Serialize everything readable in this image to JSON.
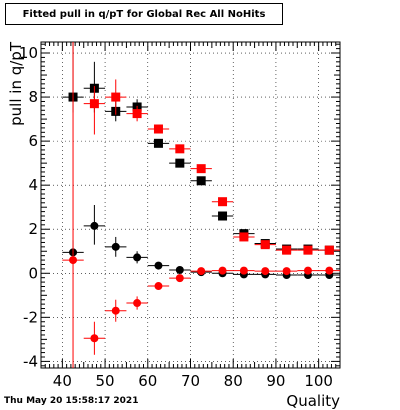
{
  "title": "Fitted pull in q/pT for Global Rec All NoHits",
  "timestamp": "Thu May 20 15:58:17 2021",
  "chart_data": {
    "type": "scatter",
    "title": "Fitted pull in q/pT for Global Rec All NoHits",
    "xlabel": "Quality",
    "ylabel": "pull in q/pT",
    "xlim": [
      35,
      105
    ],
    "ylim": [
      -4.3,
      10.5
    ],
    "xticks": [
      40,
      50,
      60,
      70,
      80,
      90,
      100
    ],
    "yticks": [
      -4,
      -2,
      0,
      2,
      4,
      6,
      8,
      10
    ],
    "grid": true,
    "legend": "none",
    "series": [
      {
        "marker": "square",
        "color": "#000000",
        "points": [
          {
            "x": 42.5,
            "y": 8.0,
            "ylo": 7.3,
            "yhi": 10.5
          },
          {
            "x": 47.5,
            "y": 8.4,
            "ylo": 7.3,
            "yhi": 9.6
          },
          {
            "x": 52.5,
            "y": 7.35,
            "ylo": 6.9,
            "yhi": 7.8
          },
          {
            "x": 57.5,
            "y": 7.55,
            "ylo": 7.2,
            "yhi": 7.9
          },
          {
            "x": 62.5,
            "y": 5.9,
            "ylo": 5.75,
            "yhi": 6.05
          },
          {
            "x": 67.5,
            "y": 5.0,
            "ylo": 4.9,
            "yhi": 5.1
          },
          {
            "x": 72.5,
            "y": 4.2,
            "ylo": 4.12,
            "yhi": 4.28
          },
          {
            "x": 77.5,
            "y": 2.6,
            "ylo": 2.54,
            "yhi": 2.66
          },
          {
            "x": 82.5,
            "y": 1.8,
            "ylo": 1.75,
            "yhi": 1.85
          },
          {
            "x": 87.5,
            "y": 1.35,
            "ylo": 1.3,
            "yhi": 1.4
          },
          {
            "x": 92.5,
            "y": 1.1,
            "ylo": 1.06,
            "yhi": 1.14
          },
          {
            "x": 97.5,
            "y": 1.1,
            "ylo": 1.06,
            "yhi": 1.14
          },
          {
            "x": 102.5,
            "y": 1.05,
            "ylo": 1.01,
            "yhi": 1.09
          }
        ]
      },
      {
        "marker": "square",
        "color": "#ff0000",
        "points": [
          {
            "x": 47.5,
            "y": 7.7,
            "ylo": 6.3,
            "yhi": 8.5
          },
          {
            "x": 52.5,
            "y": 8.0,
            "ylo": 7.2,
            "yhi": 8.8
          },
          {
            "x": 57.5,
            "y": 7.25,
            "ylo": 6.9,
            "yhi": 7.6
          },
          {
            "x": 62.5,
            "y": 6.55,
            "ylo": 6.35,
            "yhi": 6.75
          },
          {
            "x": 67.5,
            "y": 5.65,
            "ylo": 5.5,
            "yhi": 5.8
          },
          {
            "x": 72.5,
            "y": 4.75,
            "ylo": 4.65,
            "yhi": 4.85
          },
          {
            "x": 77.5,
            "y": 3.25,
            "ylo": 3.18,
            "yhi": 3.32
          },
          {
            "x": 82.5,
            "y": 1.65,
            "ylo": 1.59,
            "yhi": 1.71
          },
          {
            "x": 87.5,
            "y": 1.3,
            "ylo": 1.25,
            "yhi": 1.35
          },
          {
            "x": 92.5,
            "y": 1.05,
            "ylo": 1.01,
            "yhi": 1.09
          },
          {
            "x": 97.5,
            "y": 1.05,
            "ylo": 1.01,
            "yhi": 1.09
          },
          {
            "x": 102.5,
            "y": 1.05,
            "ylo": 1.01,
            "yhi": 1.09
          }
        ]
      },
      {
        "marker": "circle",
        "color": "#000000",
        "points": [
          {
            "x": 42.5,
            "y": 0.95,
            "ylo": 0.4,
            "yhi": 1.5
          },
          {
            "x": 47.5,
            "y": 2.15,
            "ylo": 1.3,
            "yhi": 3.1
          },
          {
            "x": 52.5,
            "y": 1.2,
            "ylo": 0.75,
            "yhi": 1.65
          },
          {
            "x": 57.5,
            "y": 0.72,
            "ylo": 0.45,
            "yhi": 1.0
          },
          {
            "x": 62.5,
            "y": 0.35,
            "ylo": 0.25,
            "yhi": 0.45
          },
          {
            "x": 67.5,
            "y": 0.15,
            "ylo": 0.08,
            "yhi": 0.22
          },
          {
            "x": 72.5,
            "y": 0.05,
            "ylo": 0.0,
            "yhi": 0.1
          },
          {
            "x": 77.5,
            "y": 0.0,
            "ylo": -0.04,
            "yhi": 0.04
          },
          {
            "x": 82.5,
            "y": -0.05,
            "ylo": -0.09,
            "yhi": -0.01
          },
          {
            "x": 87.5,
            "y": -0.05,
            "ylo": -0.09,
            "yhi": -0.01
          },
          {
            "x": 92.5,
            "y": -0.08,
            "ylo": -0.12,
            "yhi": -0.04
          },
          {
            "x": 97.5,
            "y": -0.08,
            "ylo": -0.12,
            "yhi": -0.04
          },
          {
            "x": 102.5,
            "y": -0.08,
            "ylo": -0.12,
            "yhi": -0.04
          }
        ]
      },
      {
        "marker": "circle",
        "color": "#ff0000",
        "points": [
          {
            "x": 42.5,
            "y": 0.6,
            "ylo": -4.3,
            "yhi": 10.5
          },
          {
            "x": 47.5,
            "y": -2.95,
            "ylo": -3.7,
            "yhi": -2.2
          },
          {
            "x": 52.5,
            "y": -1.7,
            "ylo": -2.2,
            "yhi": -1.2
          },
          {
            "x": 57.5,
            "y": -1.35,
            "ylo": -1.65,
            "yhi": -1.05
          },
          {
            "x": 62.5,
            "y": -0.58,
            "ylo": -0.7,
            "yhi": -0.46
          },
          {
            "x": 67.5,
            "y": -0.22,
            "ylo": -0.3,
            "yhi": -0.14
          },
          {
            "x": 72.5,
            "y": 0.1,
            "ylo": 0.05,
            "yhi": 0.15
          },
          {
            "x": 77.5,
            "y": 0.12,
            "ylo": 0.08,
            "yhi": 0.16
          },
          {
            "x": 82.5,
            "y": 0.12,
            "ylo": 0.08,
            "yhi": 0.16
          },
          {
            "x": 87.5,
            "y": 0.1,
            "ylo": 0.06,
            "yhi": 0.14
          },
          {
            "x": 92.5,
            "y": 0.1,
            "ylo": 0.06,
            "yhi": 0.14
          },
          {
            "x": 97.5,
            "y": 0.12,
            "ylo": 0.08,
            "yhi": 0.16
          },
          {
            "x": 102.5,
            "y": 0.12,
            "ylo": 0.08,
            "yhi": 0.16
          }
        ]
      }
    ]
  }
}
